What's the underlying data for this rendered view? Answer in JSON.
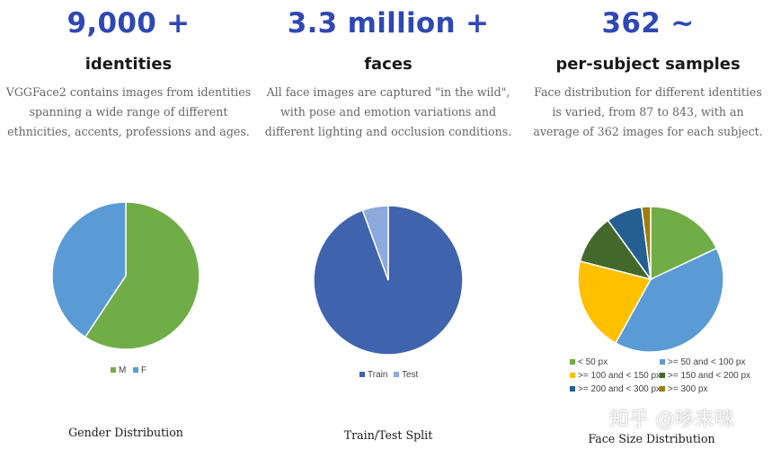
{
  "columns": [
    {
      "stat": "9,000 +",
      "subtitle": "identities",
      "description": "VGGFace2 contains images from identities spanning a wide range of different ethnicities, accents, professions and ages."
    },
    {
      "stat": "3.3 million +",
      "subtitle": "faces",
      "description": "All face images are captured \"in the wild\", with pose and emotion variations and different lighting and occlusion conditions."
    },
    {
      "stat": "362 ~",
      "subtitle": "per-subject samples",
      "description": "Face distribution for different identities is varied, from 87 to 843, with an average of 362 images for each subject."
    }
  ],
  "watermark": "知乎 @哆来咪",
  "chart_data": [
    {
      "type": "pie",
      "title": "Gender Distribution",
      "legend_position": "bottom",
      "slices": [
        {
          "label": "M",
          "value": 59.3,
          "color": "#70ad47"
        },
        {
          "label": "F",
          "value": 40.7,
          "color": "#5b9bd5"
        }
      ]
    },
    {
      "type": "pie",
      "title": "Train/Test Split",
      "legend_position": "bottom",
      "slices": [
        {
          "label": "Train",
          "value": 94.4,
          "color": "#3f63ad"
        },
        {
          "label": "Test",
          "value": 5.6,
          "color": "#8ea9db"
        }
      ]
    },
    {
      "type": "pie",
      "title": "Face Size Distribution",
      "legend_position": "bottom",
      "slices": [
        {
          "label": "< 50 px",
          "value": 18.0,
          "color": "#70ad47"
        },
        {
          "label": ">= 50 and < 100 px",
          "value": 40.0,
          "color": "#5b9bd5"
        },
        {
          "label": ">= 100 and < 150 px",
          "value": 21.0,
          "color": "#ffc000"
        },
        {
          "label": ">= 150 and < 200 px",
          "value": 11.0,
          "color": "#43682b"
        },
        {
          "label": ">= 200 and < 300 px",
          "value": 8.0,
          "color": "#255e91"
        },
        {
          "label": ">= 300 px",
          "value": 2.0,
          "color": "#9e7d0c"
        }
      ]
    }
  ]
}
